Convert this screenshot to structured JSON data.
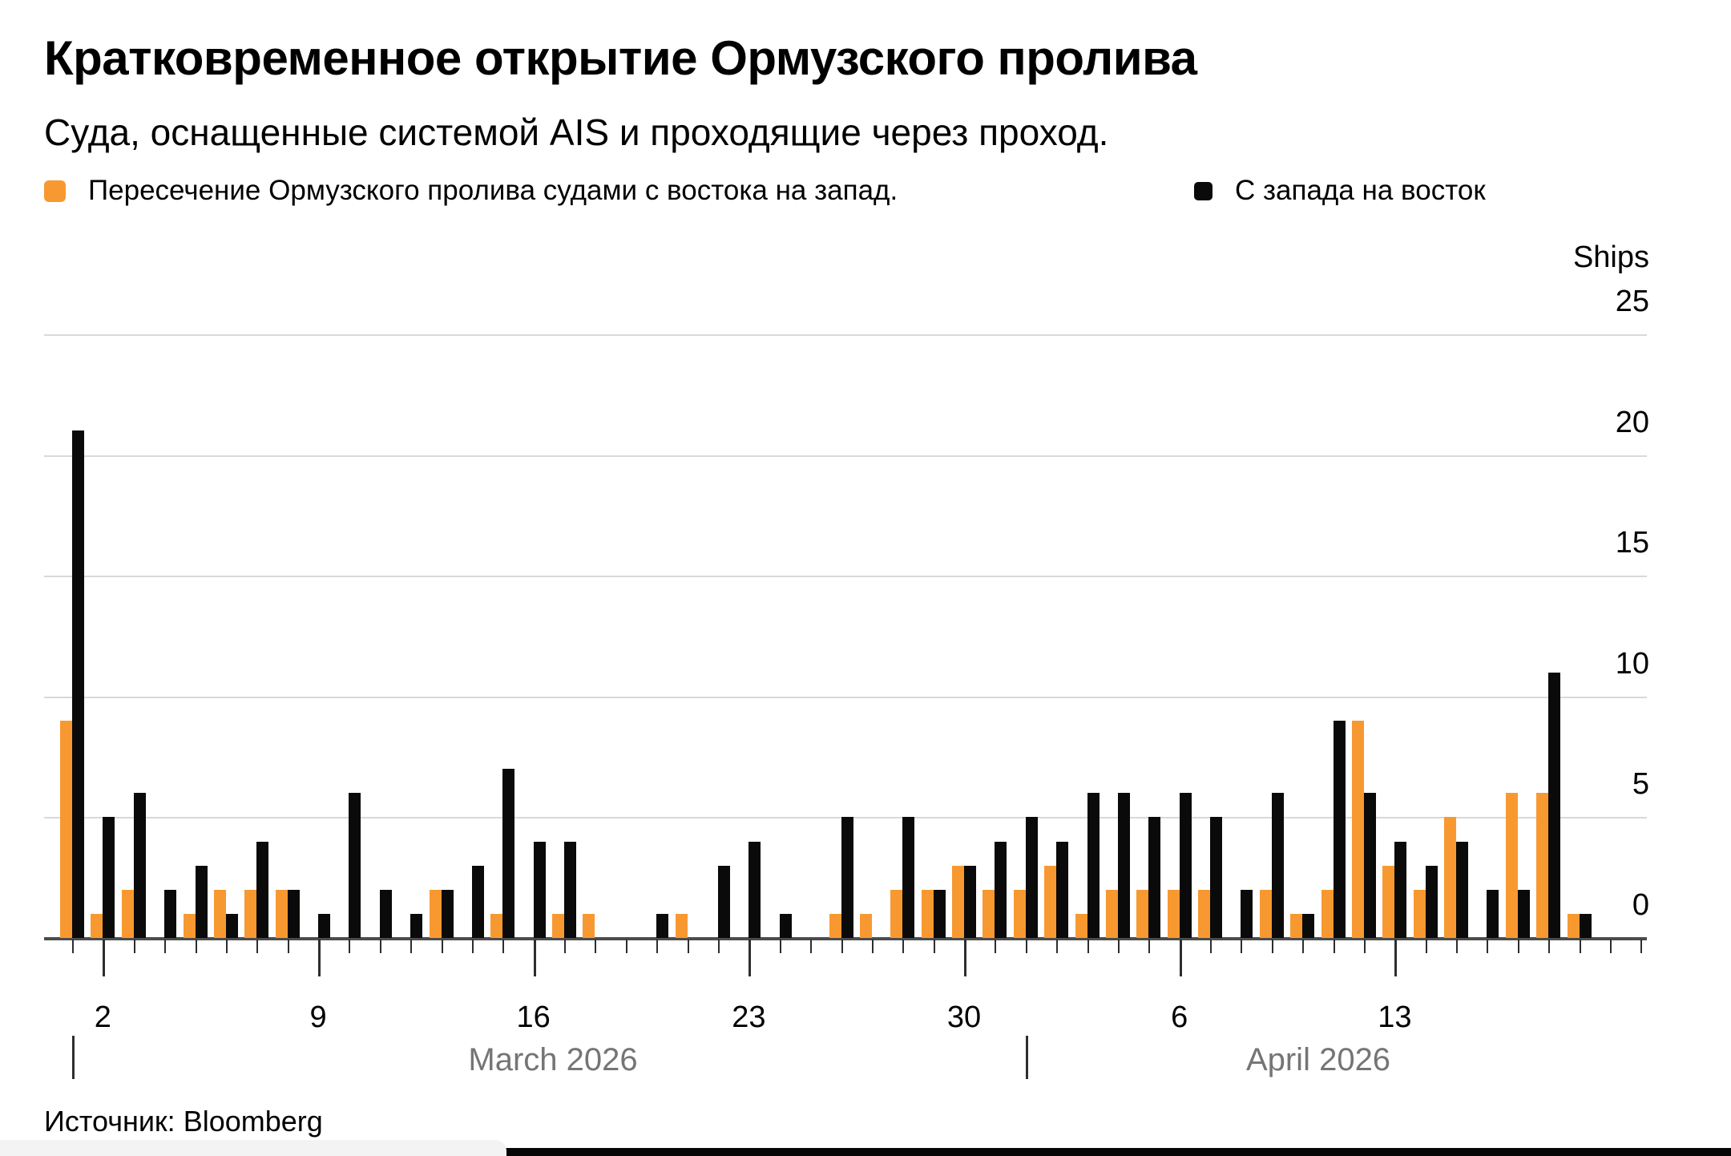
{
  "header": {
    "title": "Кратковременное открытие Ормузского пролива",
    "subtitle": "Суда, оснащенные системой AIS и проходящие через проход."
  },
  "legend": {
    "items": [
      {
        "label": "Пересечение Ормузского пролива судами с востока на запад.",
        "color": "#F79930"
      },
      {
        "label": "С запада на восток",
        "color": "#0A0A0A"
      }
    ]
  },
  "axis": {
    "unit_label": "Ships",
    "yticks": [
      25,
      20,
      15,
      10,
      5,
      0
    ],
    "months": [
      {
        "label": "March 2026"
      },
      {
        "label": "April 2026"
      }
    ]
  },
  "footer": {
    "source": "Источник: Bloomberg"
  },
  "chart_data": {
    "type": "bar",
    "title": "Кратковременное открытие Ормузского пролива",
    "subtitle": "Суда, оснащенные системой AIS и проходящие через проход.",
    "ylabel": "Ships",
    "ylim": [
      0,
      25
    ],
    "grid": "horizontal",
    "legend_position": "top-left",
    "x": [
      "Mar 1",
      "Mar 2",
      "Mar 3",
      "Mar 4",
      "Mar 5",
      "Mar 6",
      "Mar 7",
      "Mar 8",
      "Mar 9",
      "Mar 10",
      "Mar 11",
      "Mar 12",
      "Mar 13",
      "Mar 14",
      "Mar 15",
      "Mar 16",
      "Mar 17",
      "Mar 18",
      "Mar 19",
      "Mar 20",
      "Mar 21",
      "Mar 22",
      "Mar 23",
      "Mar 24",
      "Mar 25",
      "Mar 26",
      "Mar 27",
      "Mar 28",
      "Mar 29",
      "Mar 30",
      "Mar 31",
      "Apr 1",
      "Apr 2",
      "Apr 3",
      "Apr 4",
      "Apr 5",
      "Apr 6",
      "Apr 7",
      "Apr 8",
      "Apr 9",
      "Apr 10",
      "Apr 11",
      "Apr 12",
      "Apr 13",
      "Apr 14",
      "Apr 15",
      "Apr 16",
      "Apr 17",
      "Apr 18",
      "Apr 19"
    ],
    "series": [
      {
        "name": "Пересечение Ормузского пролива судами с востока на запад.",
        "color": "#F79930",
        "values": [
          9,
          1,
          2,
          0,
          1,
          2,
          2,
          2,
          0,
          0,
          0,
          0,
          2,
          0,
          1,
          0,
          1,
          1,
          0,
          0,
          1,
          0,
          0,
          0,
          0,
          1,
          1,
          2,
          2,
          3,
          2,
          2,
          3,
          1,
          2,
          2,
          2,
          2,
          0,
          2,
          1,
          2,
          9,
          3,
          2,
          5,
          0,
          6,
          6,
          1
        ]
      },
      {
        "name": "С запада на восток",
        "color": "#0A0A0A",
        "values": [
          21,
          5,
          6,
          2,
          3,
          1,
          4,
          2,
          1,
          6,
          2,
          1,
          2,
          3,
          7,
          4,
          4,
          0,
          0,
          1,
          0,
          3,
          4,
          1,
          0,
          5,
          0,
          5,
          2,
          3,
          4,
          5,
          4,
          6,
          6,
          5,
          6,
          5,
          2,
          6,
          1,
          9,
          6,
          4,
          3,
          4,
          2,
          2,
          11,
          1
        ]
      }
    ],
    "x_major_ticks": [
      {
        "index": 1,
        "label": "2"
      },
      {
        "index": 8,
        "label": "9"
      },
      {
        "index": 15,
        "label": "16"
      },
      {
        "index": 22,
        "label": "23"
      },
      {
        "index": 29,
        "label": "30"
      },
      {
        "index": 36,
        "label": "6"
      },
      {
        "index": 43,
        "label": "13"
      }
    ],
    "month_separator_indices": [
      0,
      31
    ]
  }
}
